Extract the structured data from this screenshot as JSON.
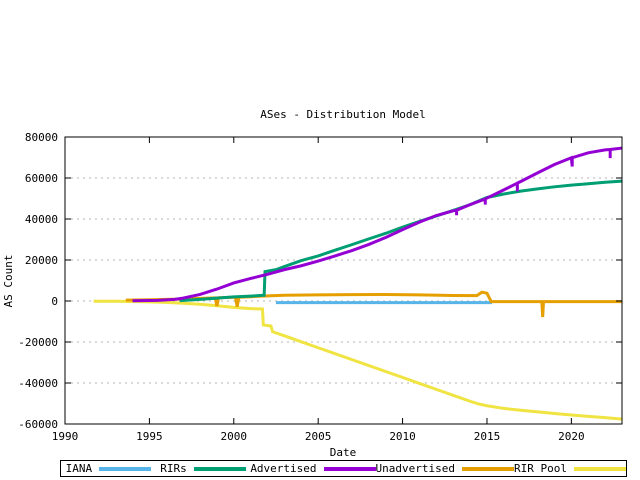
{
  "chart_data": {
    "type": "line",
    "title": "ASes - Distribution Model",
    "xlabel": "Date",
    "ylabel": "AS Count",
    "xlim": [
      1990,
      2023
    ],
    "ylim": [
      -60000,
      80000
    ],
    "x_ticks": [
      1990,
      1995,
      2000,
      2005,
      2010,
      2015,
      2020
    ],
    "y_ticks": [
      -60000,
      -40000,
      -20000,
      0,
      20000,
      40000,
      60000,
      80000
    ],
    "grid": "horizontal-dashed",
    "grid_color": "#b3b3b3",
    "axis_color": "#000000",
    "legend_position": "bottom",
    "draw_order": [
      0,
      4,
      3,
      1,
      2
    ],
    "series": [
      {
        "name": "IANA",
        "color": "#56b4e9",
        "points": [
          [
            2002.5,
            -800
          ],
          [
            2008,
            -800
          ],
          [
            2012,
            -800
          ],
          [
            2015.3,
            -800
          ]
        ]
      },
      {
        "name": "RIRs",
        "color": "#009e73",
        "points": [
          [
            1996.8,
            200
          ],
          [
            1998,
            800
          ],
          [
            1999,
            1400
          ],
          [
            2000,
            2000
          ],
          [
            2001,
            2400
          ],
          [
            2001.8,
            2800
          ],
          [
            2001.85,
            14300
          ],
          [
            2002.5,
            15300
          ],
          [
            2003,
            16800
          ],
          [
            2004,
            19700
          ],
          [
            2005,
            22000
          ],
          [
            2006,
            24800
          ],
          [
            2007,
            27500
          ],
          [
            2008,
            30300
          ],
          [
            2009,
            33000
          ],
          [
            2010,
            36000
          ],
          [
            2011,
            38800
          ],
          [
            2012,
            41500
          ],
          [
            2013,
            44200
          ],
          [
            2014,
            47000
          ],
          [
            2015,
            50500
          ],
          [
            2016,
            52200
          ],
          [
            2017,
            53600
          ],
          [
            2018,
            54700
          ],
          [
            2019,
            55700
          ],
          [
            2020,
            56500
          ],
          [
            2021,
            57200
          ],
          [
            2022,
            57900
          ],
          [
            2023,
            58500
          ]
        ]
      },
      {
        "name": "Advertised",
        "color": "#9400d3",
        "points": [
          [
            1994,
            100
          ],
          [
            1995.5,
            300
          ],
          [
            1996.5,
            800
          ],
          [
            1997,
            1400
          ],
          [
            1998,
            3200
          ],
          [
            1999,
            5800
          ],
          [
            2000,
            8800
          ],
          [
            2001,
            11000
          ],
          [
            2002,
            13000
          ],
          [
            2003,
            15300
          ],
          [
            2004,
            17200
          ],
          [
            2005,
            19500
          ],
          [
            2006,
            22000
          ],
          [
            2007,
            24600
          ],
          [
            2008,
            27600
          ],
          [
            2009,
            31000
          ],
          [
            2010,
            34800
          ],
          [
            2011,
            38500
          ],
          [
            2012,
            41700
          ],
          [
            2013,
            44000
          ],
          [
            2013.2,
            44300
          ],
          [
            2013.2,
            41800
          ],
          [
            2013.2,
            44300
          ],
          [
            2014,
            47000
          ],
          [
            2014.9,
            49800
          ],
          [
            2014.9,
            47000
          ],
          [
            2014.9,
            49800
          ],
          [
            2015.2,
            51000
          ],
          [
            2016,
            54200
          ],
          [
            2016.8,
            57500
          ],
          [
            2016.8,
            53400
          ],
          [
            2016.8,
            57500
          ],
          [
            2017,
            58300
          ],
          [
            2018,
            62500
          ],
          [
            2019,
            66600
          ],
          [
            2020,
            69900
          ],
          [
            2020.05,
            65600
          ],
          [
            2020.05,
            69900
          ],
          [
            2021,
            72300
          ],
          [
            2022,
            73700
          ],
          [
            2022.3,
            73900
          ],
          [
            2022.3,
            69700
          ],
          [
            2022.3,
            73900
          ],
          [
            2023,
            74600
          ]
        ]
      },
      {
        "name": "Unadvertised",
        "color": "#e69f00",
        "points": [
          [
            1993.6,
            400
          ],
          [
            1995,
            600
          ],
          [
            1996,
            800
          ],
          [
            1997,
            1000
          ],
          [
            1998,
            1300
          ],
          [
            1998.9,
            1500
          ],
          [
            1999.0,
            -2500
          ],
          [
            1999.1,
            1600
          ],
          [
            2000.1,
            1800
          ],
          [
            2000.2,
            -2800
          ],
          [
            2000.3,
            1800
          ],
          [
            2001,
            2100
          ],
          [
            2002,
            2500
          ],
          [
            2003,
            2800
          ],
          [
            2005,
            3000
          ],
          [
            2007,
            3100
          ],
          [
            2009,
            3200
          ],
          [
            2011,
            3000
          ],
          [
            2013,
            2700
          ],
          [
            2014.4,
            2600
          ],
          [
            2014.7,
            4300
          ],
          [
            2015.0,
            3800
          ],
          [
            2015.25,
            -300
          ],
          [
            2016,
            -300
          ],
          [
            2018.25,
            -300
          ],
          [
            2018.3,
            -7800
          ],
          [
            2018.35,
            -300
          ],
          [
            2021,
            -300
          ],
          [
            2023,
            -300
          ]
        ]
      },
      {
        "name": "RIR Pool",
        "color": "#f0e442",
        "points": [
          [
            1991.7,
            -100
          ],
          [
            1993,
            -150
          ],
          [
            1994,
            -250
          ],
          [
            1995,
            -450
          ],
          [
            1996,
            -700
          ],
          [
            1997,
            -1100
          ],
          [
            1998,
            -1600
          ],
          [
            1999,
            -2300
          ],
          [
            2000,
            -3100
          ],
          [
            2001,
            -3700
          ],
          [
            2001.7,
            -3900
          ],
          [
            2001.75,
            -11700
          ],
          [
            2002.2,
            -12200
          ],
          [
            2002.3,
            -15000
          ],
          [
            2003,
            -17000
          ],
          [
            2004,
            -19900
          ],
          [
            2005,
            -22800
          ],
          [
            2006,
            -25700
          ],
          [
            2007,
            -28600
          ],
          [
            2008,
            -31500
          ],
          [
            2009,
            -34400
          ],
          [
            2010,
            -37300
          ],
          [
            2011,
            -40200
          ],
          [
            2012,
            -43100
          ],
          [
            2013,
            -46000
          ],
          [
            2014,
            -48900
          ],
          [
            2014.5,
            -50200
          ],
          [
            2015,
            -51100
          ],
          [
            2016,
            -52400
          ],
          [
            2017,
            -53300
          ],
          [
            2018,
            -54100
          ],
          [
            2019,
            -54900
          ],
          [
            2020,
            -55600
          ],
          [
            2021,
            -56300
          ],
          [
            2022,
            -56900
          ],
          [
            2023,
            -57600
          ]
        ]
      }
    ]
  }
}
